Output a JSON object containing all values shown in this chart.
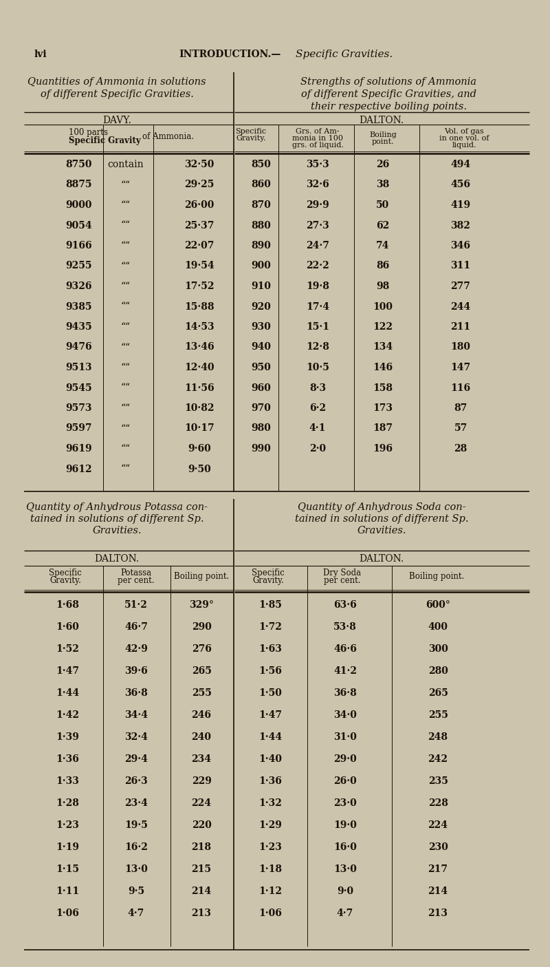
{
  "bg_color": "#cdc4ad",
  "text_color": "#1a1008",
  "page_header_left": "lvi",
  "page_header_center": "INTRODUCTION.—",
  "page_header_italic": "Specific Gravities.",
  "section1_left_title_line1": "Quantities of Ammonia in solutions",
  "section1_left_title_line2": "of different Specific Gravities.",
  "section1_right_title_line1": "Strengths of solutions of Ammonia",
  "section1_right_title_line2": "of different Specific Gravities, and",
  "section1_right_title_line3": "their respective boiling points.",
  "davy_label": "DAVY.",
  "dalton_label": "DALTON.",
  "davy_col1_header_line1": "100 parts",
  "davy_col1_header_line2": "Specific Gravity",
  "davy_col3_header": "of Ammonia.",
  "dalton_col1_header_line1": "Specific",
  "dalton_col1_header_line2": "Gravity.",
  "dalton_col2_header_line1": "Grs. of Am-",
  "dalton_col2_header_line2": "monia in 100",
  "dalton_col2_header_line3": "grs. of liquid.",
  "dalton_col3_header_line1": "Boiling",
  "dalton_col3_header_line2": "point.",
  "dalton_col4_header_line1": "Vol. of gas",
  "dalton_col4_header_line2": "in one vol. of",
  "dalton_col4_header_line3": "liquid.",
  "davy_data": [
    [
      "8750",
      "contain",
      "32·50"
    ],
    [
      "8875",
      "““",
      "29·25"
    ],
    [
      "9000",
      "““",
      "26·00"
    ],
    [
      "9054",
      "““",
      "25·37"
    ],
    [
      "9166",
      "““",
      "22·07"
    ],
    [
      "9255",
      "““",
      "19·54"
    ],
    [
      "9326",
      "““",
      "17·52"
    ],
    [
      "9385",
      "““",
      "15·88"
    ],
    [
      "9435",
      "““",
      "14·53"
    ],
    [
      "9476",
      "““",
      "13·46"
    ],
    [
      "9513",
      "““",
      "12·40"
    ],
    [
      "9545",
      "““",
      "11·56"
    ],
    [
      "9573",
      "““",
      "10·82"
    ],
    [
      "9597",
      "““",
      "10·17"
    ],
    [
      "9619",
      "““",
      "9·60"
    ],
    [
      "9612",
      "““",
      "9·50"
    ]
  ],
  "dalton_data": [
    [
      "850",
      "35·3",
      "26",
      "494"
    ],
    [
      "860",
      "32·6",
      "38",
      "456"
    ],
    [
      "870",
      "29·9",
      "50",
      "419"
    ],
    [
      "880",
      "27·3",
      "62",
      "382"
    ],
    [
      "890",
      "24·7",
      "74",
      "346"
    ],
    [
      "900",
      "22·2",
      "86",
      "311"
    ],
    [
      "910",
      "19·8",
      "98",
      "277"
    ],
    [
      "920",
      "17·4",
      "100",
      "244"
    ],
    [
      "930",
      "15·1",
      "122",
      "211"
    ],
    [
      "940",
      "12·8",
      "134",
      "180"
    ],
    [
      "950",
      "10·5",
      "146",
      "147"
    ],
    [
      "960",
      "8·3",
      "158",
      "116"
    ],
    [
      "970",
      "6·2",
      "173",
      "87"
    ],
    [
      "980",
      "4·1",
      "187",
      "57"
    ],
    [
      "990",
      "2·0",
      "196",
      "28"
    ]
  ],
  "section2_left_title_line1": "Quantity of Anhydrous Potassa con-",
  "section2_left_title_line2": "tained in solutions of different Sp.",
  "section2_left_title_line3": "Gravities.",
  "section2_right_title_line1": "Quantity of Anhydrous Soda con-",
  "section2_right_title_line2": "tained in solutions of different Sp.",
  "section2_right_title_line3": "Gravities.",
  "potassa_col1_header_line1": "Specific",
  "potassa_col1_header_line2": "Gravity.",
  "potassa_col2_header_line1": "Potassa",
  "potassa_col2_header_line2": "per cent.",
  "potassa_col3_header": "Boiling point.",
  "soda_col1_header_line1": "Specific",
  "soda_col1_header_line2": "Gravity.",
  "soda_col2_header_line1": "Dry Soda",
  "soda_col2_header_line2": "per cent.",
  "soda_col3_header": "Boiling point.",
  "potassa_data": [
    [
      "1·68",
      "51·2",
      "329°"
    ],
    [
      "1·60",
      "46·7",
      "290"
    ],
    [
      "1·52",
      "42·9",
      "276"
    ],
    [
      "1·47",
      "39·6",
      "265"
    ],
    [
      "1·44",
      "36·8",
      "255"
    ],
    [
      "1·42",
      "34·4",
      "246"
    ],
    [
      "1·39",
      "32·4",
      "240"
    ],
    [
      "1·36",
      "29·4",
      "234"
    ],
    [
      "1·33",
      "26·3",
      "229"
    ],
    [
      "1·28",
      "23·4",
      "224"
    ],
    [
      "1·23",
      "19·5",
      "220"
    ],
    [
      "1·19",
      "16·2",
      "218"
    ],
    [
      "1·15",
      "13·0",
      "215"
    ],
    [
      "1·11",
      "9·5",
      "214"
    ],
    [
      "1·06",
      "4·7",
      "213"
    ]
  ],
  "soda_data": [
    [
      "1·85",
      "63·6",
      "600°"
    ],
    [
      "1·72",
      "53·8",
      "400"
    ],
    [
      "1·63",
      "46·6",
      "300"
    ],
    [
      "1·56",
      "41·2",
      "280"
    ],
    [
      "1·50",
      "36·8",
      "265"
    ],
    [
      "1·47",
      "34·0",
      "255"
    ],
    [
      "1·44",
      "31·0",
      "248"
    ],
    [
      "1·40",
      "29·0",
      "242"
    ],
    [
      "1·36",
      "26·0",
      "235"
    ],
    [
      "1·32",
      "23·0",
      "228"
    ],
    [
      "1·29",
      "19·0",
      "224"
    ],
    [
      "1·23",
      "16·0",
      "230"
    ],
    [
      "1·18",
      "13·0",
      "217"
    ],
    [
      "1·12",
      "9·0",
      "214"
    ],
    [
      "1·06",
      "4·7",
      "213"
    ]
  ]
}
